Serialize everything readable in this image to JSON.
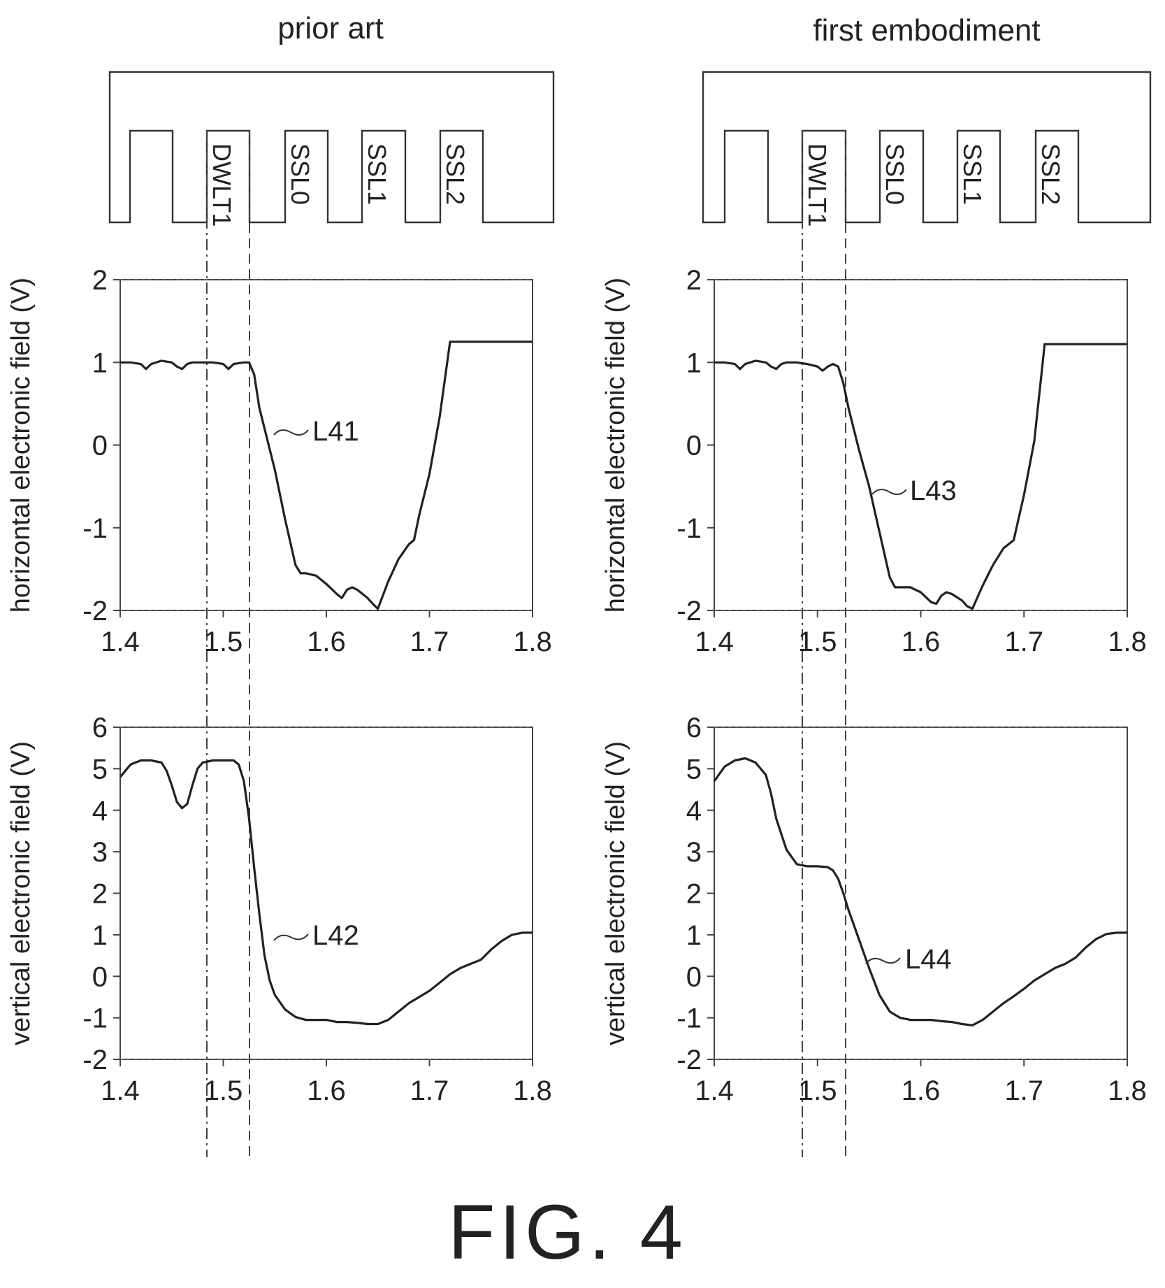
{
  "figure_label": "FIG. 4",
  "columns": [
    {
      "title": "prior art",
      "structure_labels": [
        "DWLT1",
        "SSL0",
        "SSL1",
        "SSL2"
      ],
      "panels": [
        {
          "ylabel": "horizontal electronic field (V)",
          "curve_label": "L41"
        },
        {
          "ylabel": "vertical electronic field (V)",
          "curve_label": "L42"
        }
      ]
    },
    {
      "title": "first embodiment",
      "structure_labels": [
        "DWLT1",
        "SSL0",
        "SSL1",
        "SSL2"
      ],
      "panels": [
        {
          "ylabel": "horizontal electronic field (V)",
          "curve_label": "L43"
        },
        {
          "ylabel": "vertical electronic field (V)",
          "curve_label": "L44"
        }
      ]
    }
  ],
  "chart_data": [
    {
      "type": "line",
      "ylabel": "horizontal electronic field (V)",
      "xlim": [
        1.4,
        1.8
      ],
      "ylim": [
        -2,
        2
      ],
      "xticks": [
        "1.4",
        "1.5",
        "1.6",
        "1.7",
        "1.8"
      ],
      "yticks": [
        "2",
        "1",
        "0",
        "-1",
        "-2"
      ],
      "grid": false,
      "series": [
        {
          "name": "L41",
          "x": [
            1.4,
            1.41,
            1.42,
            1.425,
            1.43,
            1.44,
            1.45,
            1.455,
            1.46,
            1.465,
            1.47,
            1.48,
            1.49,
            1.5,
            1.505,
            1.51,
            1.52,
            1.525,
            1.53,
            1.535,
            1.54,
            1.55,
            1.56,
            1.57,
            1.575,
            1.58,
            1.59,
            1.6,
            1.61,
            1.615,
            1.62,
            1.625,
            1.63,
            1.64,
            1.645,
            1.65,
            1.66,
            1.67,
            1.68,
            1.685,
            1.69,
            1.7,
            1.71,
            1.72,
            1.73,
            1.74,
            1.75,
            1.76,
            1.77,
            1.78,
            1.79,
            1.8
          ],
          "y": [
            1.0,
            1.0,
            0.98,
            0.92,
            0.98,
            1.02,
            1.0,
            0.95,
            0.92,
            0.98,
            1.0,
            1.0,
            1.0,
            0.98,
            0.92,
            0.98,
            1.0,
            1.0,
            0.85,
            0.45,
            0.2,
            -0.3,
            -0.9,
            -1.45,
            -1.55,
            -1.55,
            -1.58,
            -1.68,
            -1.8,
            -1.85,
            -1.75,
            -1.72,
            -1.75,
            -1.85,
            -1.92,
            -1.98,
            -1.65,
            -1.38,
            -1.2,
            -1.15,
            -0.85,
            -0.35,
            0.35,
            1.25,
            1.25,
            1.25,
            1.25,
            1.25,
            1.25,
            1.25,
            1.25,
            1.25
          ]
        }
      ]
    },
    {
      "type": "line",
      "ylabel": "vertical electronic field (V)",
      "xlim": [
        1.4,
        1.8
      ],
      "ylim": [
        -2,
        6
      ],
      "xticks": [
        "1.4",
        "1.5",
        "1.6",
        "1.7",
        "1.8"
      ],
      "yticks": [
        "6",
        "5",
        "4",
        "3",
        "2",
        "1",
        "0",
        "-1",
        "-2"
      ],
      "grid": false,
      "series": [
        {
          "name": "L42",
          "x": [
            1.4,
            1.41,
            1.42,
            1.43,
            1.44,
            1.445,
            1.45,
            1.455,
            1.46,
            1.465,
            1.47,
            1.475,
            1.48,
            1.49,
            1.5,
            1.51,
            1.515,
            1.52,
            1.525,
            1.53,
            1.535,
            1.54,
            1.545,
            1.55,
            1.56,
            1.57,
            1.58,
            1.59,
            1.6,
            1.61,
            1.62,
            1.63,
            1.64,
            1.65,
            1.66,
            1.67,
            1.68,
            1.69,
            1.7,
            1.71,
            1.72,
            1.73,
            1.74,
            1.75,
            1.76,
            1.77,
            1.78,
            1.79,
            1.8
          ],
          "y": [
            4.8,
            5.1,
            5.2,
            5.2,
            5.15,
            4.95,
            4.6,
            4.2,
            4.05,
            4.15,
            4.6,
            5.0,
            5.15,
            5.2,
            5.2,
            5.2,
            5.1,
            4.7,
            3.8,
            2.6,
            1.5,
            0.5,
            -0.1,
            -0.45,
            -0.8,
            -0.98,
            -1.05,
            -1.05,
            -1.05,
            -1.1,
            -1.1,
            -1.12,
            -1.15,
            -1.15,
            -1.05,
            -0.85,
            -0.65,
            -0.5,
            -0.35,
            -0.15,
            0.05,
            0.2,
            0.3,
            0.4,
            0.65,
            0.85,
            1.0,
            1.05,
            1.05
          ]
        }
      ]
    },
    {
      "type": "line",
      "ylabel": "horizontal electronic field (V)",
      "xlim": [
        1.4,
        1.8
      ],
      "ylim": [
        -2,
        2
      ],
      "xticks": [
        "1.4",
        "1.5",
        "1.6",
        "1.7",
        "1.8"
      ],
      "yticks": [
        "2",
        "1",
        "0",
        "-1",
        "-2"
      ],
      "grid": false,
      "series": [
        {
          "name": "L43",
          "x": [
            1.4,
            1.41,
            1.42,
            1.425,
            1.43,
            1.44,
            1.45,
            1.455,
            1.46,
            1.465,
            1.47,
            1.48,
            1.49,
            1.5,
            1.505,
            1.51,
            1.515,
            1.52,
            1.525,
            1.53,
            1.54,
            1.55,
            1.56,
            1.57,
            1.575,
            1.58,
            1.59,
            1.6,
            1.61,
            1.615,
            1.62,
            1.625,
            1.63,
            1.64,
            1.645,
            1.65,
            1.66,
            1.67,
            1.68,
            1.69,
            1.7,
            1.71,
            1.72,
            1.73,
            1.74,
            1.75,
            1.76,
            1.77,
            1.78,
            1.79,
            1.8
          ],
          "y": [
            1.0,
            1.0,
            0.98,
            0.92,
            0.98,
            1.02,
            1.0,
            0.95,
            0.92,
            0.98,
            1.0,
            1.0,
            0.98,
            0.95,
            0.9,
            0.95,
            0.98,
            0.95,
            0.75,
            0.45,
            -0.05,
            -0.5,
            -1.05,
            -1.6,
            -1.72,
            -1.72,
            -1.72,
            -1.78,
            -1.9,
            -1.92,
            -1.82,
            -1.78,
            -1.8,
            -1.88,
            -1.95,
            -1.98,
            -1.7,
            -1.45,
            -1.25,
            -1.15,
            -0.6,
            0.05,
            1.22,
            1.22,
            1.22,
            1.22,
            1.22,
            1.22,
            1.22,
            1.22,
            1.22
          ]
        }
      ]
    },
    {
      "type": "line",
      "ylabel": "vertical electronic field (V)",
      "xlim": [
        1.4,
        1.8
      ],
      "ylim": [
        -2,
        6
      ],
      "xticks": [
        "1.4",
        "1.5",
        "1.6",
        "1.7",
        "1.8"
      ],
      "yticks": [
        "6",
        "5",
        "4",
        "3",
        "2",
        "1",
        "0",
        "-1",
        "-2"
      ],
      "grid": false,
      "series": [
        {
          "name": "L44",
          "x": [
            1.4,
            1.41,
            1.42,
            1.43,
            1.44,
            1.45,
            1.455,
            1.46,
            1.47,
            1.48,
            1.49,
            1.5,
            1.51,
            1.515,
            1.52,
            1.525,
            1.53,
            1.54,
            1.55,
            1.56,
            1.57,
            1.58,
            1.59,
            1.6,
            1.61,
            1.62,
            1.63,
            1.64,
            1.65,
            1.66,
            1.67,
            1.68,
            1.69,
            1.7,
            1.71,
            1.72,
            1.73,
            1.74,
            1.75,
            1.76,
            1.77,
            1.78,
            1.79,
            1.8
          ],
          "y": [
            4.7,
            5.05,
            5.2,
            5.25,
            5.15,
            4.85,
            4.4,
            3.8,
            3.05,
            2.7,
            2.65,
            2.65,
            2.63,
            2.55,
            2.35,
            2.0,
            1.6,
            0.9,
            0.2,
            -0.45,
            -0.85,
            -1.0,
            -1.05,
            -1.05,
            -1.05,
            -1.08,
            -1.1,
            -1.15,
            -1.18,
            -1.05,
            -0.85,
            -0.65,
            -0.48,
            -0.3,
            -0.1,
            0.05,
            0.2,
            0.3,
            0.45,
            0.7,
            0.9,
            1.02,
            1.05,
            1.05
          ]
        }
      ]
    }
  ]
}
